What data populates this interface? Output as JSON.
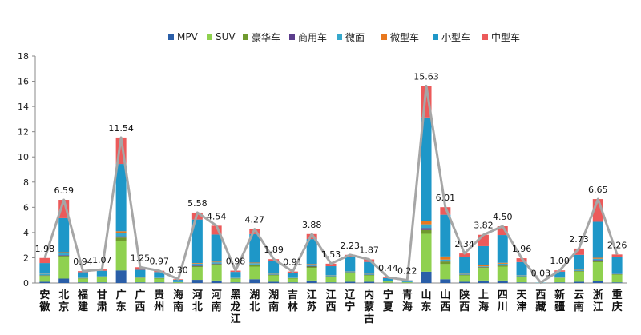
{
  "chart_data": {
    "type": "bar",
    "stacked": true,
    "title": "",
    "xlabel": "",
    "ylabel": "",
    "ylim": [
      0,
      18
    ],
    "yticks": [
      0,
      2,
      4,
      6,
      8,
      10,
      12,
      14,
      16,
      18
    ],
    "grid": false,
    "legend_position": "top",
    "categories": [
      "安徽",
      "北京",
      "福建",
      "甘肃",
      "广东",
      "广西",
      "贵州",
      "海南",
      "河北",
      "河南",
      "黑龙江",
      "湖北",
      "湖南",
      "吉林",
      "江苏",
      "江西",
      "辽宁",
      "内蒙古",
      "宁夏",
      "青海",
      "山东",
      "山西",
      "陕西",
      "上海",
      "四川",
      "天津",
      "西藏",
      "新疆",
      "云南",
      "浙江",
      "重庆"
    ],
    "series": [
      {
        "name": "MPV",
        "color": "#2a5ea8",
        "values": [
          0.1,
          0.35,
          0.05,
          0.05,
          1.0,
          0.05,
          0.05,
          0.01,
          0.25,
          0.2,
          0.05,
          0.3,
          0.1,
          0.05,
          0.2,
          0.05,
          0.1,
          0.1,
          0.02,
          0.01,
          0.9,
          0.3,
          0.1,
          0.2,
          0.2,
          0.05,
          0.0,
          0.05,
          0.1,
          0.15,
          0.05
        ]
      },
      {
        "name": "SUV",
        "color": "#8fd14f",
        "values": [
          0.45,
          1.7,
          0.3,
          0.4,
          2.3,
          0.35,
          0.3,
          0.05,
          1.0,
          1.2,
          0.3,
          1.0,
          0.5,
          0.3,
          1.0,
          0.45,
          0.7,
          0.5,
          0.1,
          0.05,
          3.0,
          1.2,
          0.5,
          1.0,
          1.1,
          0.45,
          0.01,
          0.35,
          0.8,
          1.5,
          0.6
        ]
      },
      {
        "name": "豪华车",
        "color": "#6f9a2e",
        "values": [
          0.05,
          0.1,
          0.02,
          0.02,
          0.3,
          0.03,
          0.03,
          0.01,
          0.08,
          0.1,
          0.02,
          0.12,
          0.05,
          0.03,
          0.1,
          0.03,
          0.05,
          0.04,
          0.01,
          0.01,
          0.3,
          0.2,
          0.05,
          0.05,
          0.08,
          0.03,
          0.0,
          0.02,
          0.05,
          0.12,
          0.05
        ]
      },
      {
        "name": "商用车",
        "color": "#5b3d8c",
        "values": [
          0.02,
          0.05,
          0.01,
          0.01,
          0.1,
          0.01,
          0.01,
          0.0,
          0.05,
          0.04,
          0.02,
          0.05,
          0.02,
          0.01,
          0.05,
          0.01,
          0.02,
          0.02,
          0.01,
          0.0,
          0.15,
          0.05,
          0.02,
          0.02,
          0.05,
          0.01,
          0.0,
          0.01,
          0.02,
          0.05,
          0.02
        ]
      },
      {
        "name": "微面",
        "color": "#36a8cc",
        "values": [
          0.1,
          0.2,
          0.05,
          0.05,
          0.25,
          0.05,
          0.05,
          0.01,
          0.15,
          0.1,
          0.05,
          0.1,
          0.07,
          0.05,
          0.1,
          0.05,
          0.05,
          0.05,
          0.01,
          0.01,
          0.3,
          0.1,
          0.07,
          0.05,
          0.1,
          0.05,
          0.0,
          0.02,
          0.05,
          0.1,
          0.05
        ]
      },
      {
        "name": "微型车",
        "color": "#e8781f",
        "values": [
          0.02,
          0.04,
          0.01,
          0.01,
          0.15,
          0.01,
          0.01,
          0.0,
          0.05,
          0.05,
          0.01,
          0.05,
          0.02,
          0.01,
          0.05,
          0.02,
          0.02,
          0.02,
          0.0,
          0.0,
          0.25,
          0.25,
          0.05,
          0.1,
          0.07,
          0.02,
          0.0,
          0.01,
          0.03,
          0.08,
          0.04
        ]
      },
      {
        "name": "小型车",
        "color": "#1e97c8",
        "values": [
          0.84,
          2.7,
          0.41,
          0.43,
          5.34,
          0.55,
          0.42,
          0.17,
          3.45,
          2.15,
          0.43,
          2.25,
          0.98,
          0.36,
          1.98,
          0.72,
          1.09,
          0.94,
          0.24,
          0.13,
          8.23,
          3.31,
          1.3,
          1.5,
          2.2,
          1.05,
          0.02,
          0.44,
          1.18,
          2.85,
          1.25
        ]
      },
      {
        "name": "中型车",
        "color": "#ec5a5a",
        "values": [
          0.4,
          1.45,
          0.09,
          0.1,
          2.1,
          0.2,
          0.1,
          0.05,
          0.55,
          0.7,
          0.1,
          0.4,
          0.15,
          0.1,
          0.4,
          0.2,
          0.2,
          0.2,
          0.05,
          0.01,
          2.5,
          0.6,
          0.25,
          0.9,
          0.7,
          0.3,
          0.0,
          0.1,
          0.5,
          1.8,
          0.2
        ]
      }
    ],
    "line": {
      "color": "#a6a6a6",
      "values": [
        1.98,
        6.59,
        0.94,
        1.07,
        11.54,
        1.25,
        0.97,
        0.3,
        5.58,
        4.54,
        0.98,
        4.27,
        1.89,
        0.91,
        3.88,
        1.53,
        2.23,
        1.87,
        0.44,
        0.22,
        15.63,
        6.01,
        2.34,
        3.82,
        4.5,
        1.96,
        0.03,
        1.0,
        2.73,
        6.65,
        2.26
      ]
    },
    "data_labels": [
      "1.98",
      "6.59",
      "0.94",
      "1.07",
      "11.54",
      "1.25",
      "0.97",
      "0.30",
      "5.58",
      "4.54",
      "0.98",
      "4.27",
      "1.89",
      "0.91",
      "3.88",
      "1.53",
      "2.23",
      "1.87",
      "0.44",
      "0.22",
      "15.63",
      "6.01",
      "2.34",
      "3.82",
      "4.50",
      "1.96",
      "0.03",
      "1.00",
      "2.73",
      "6.65",
      "2.26"
    ]
  }
}
